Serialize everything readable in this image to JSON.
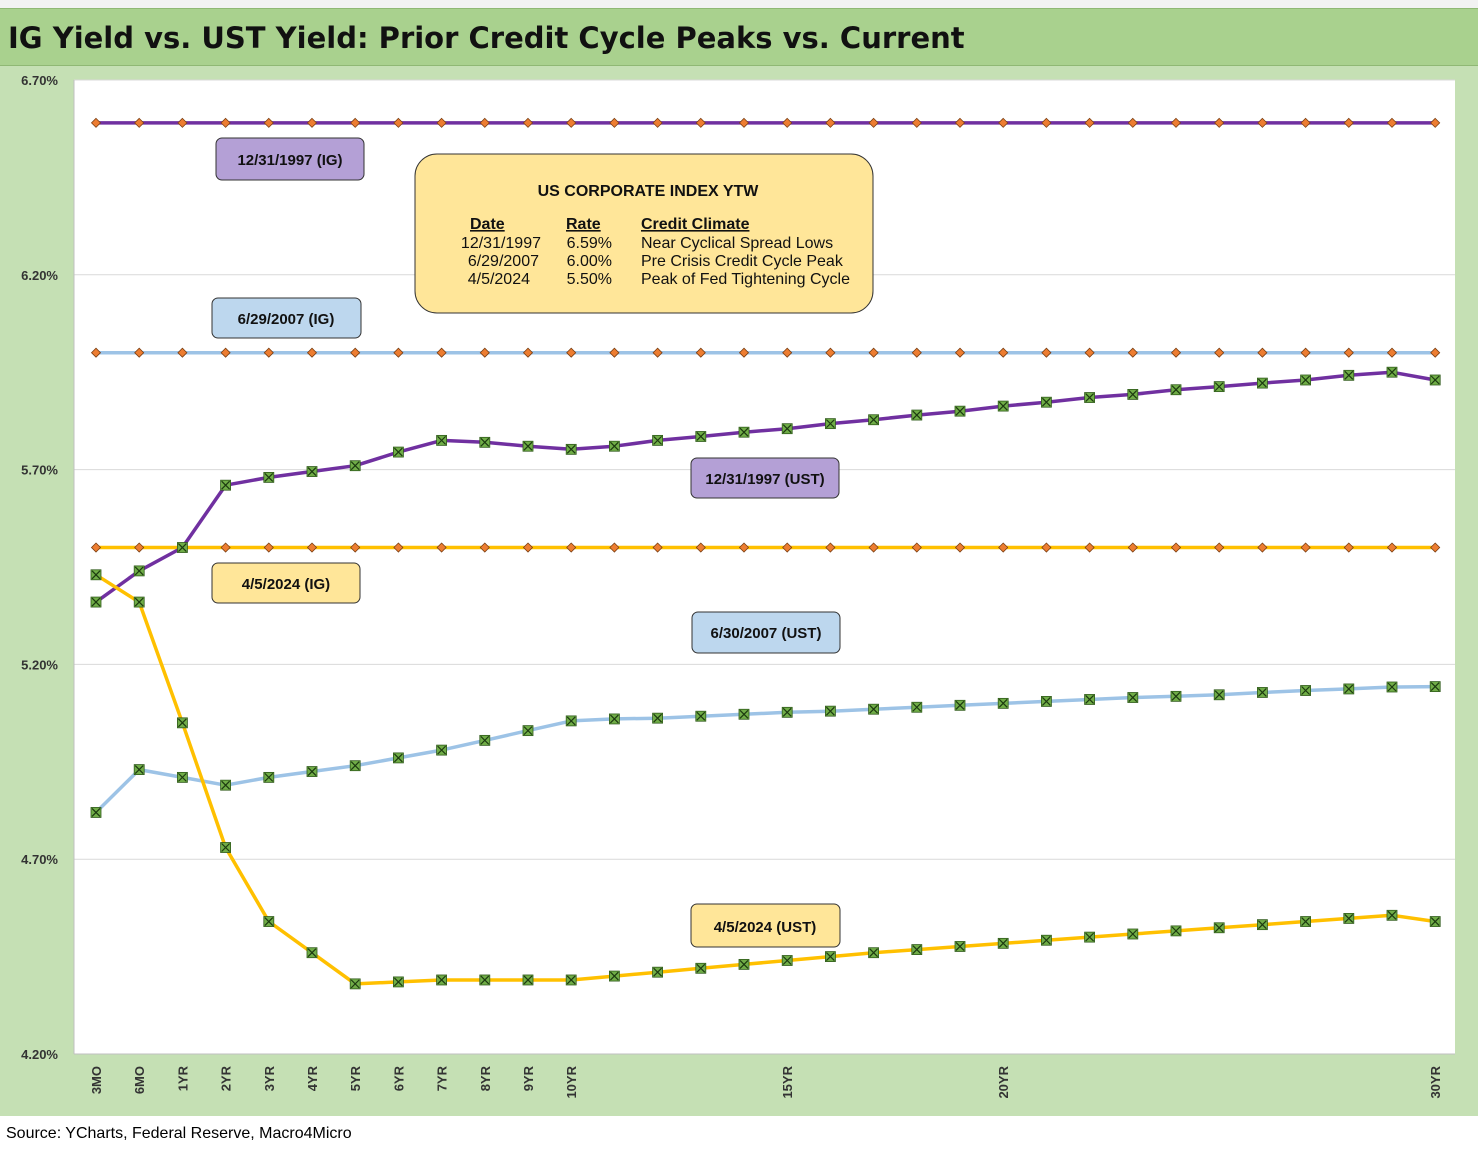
{
  "title": "IG Yield vs. UST Yield: Prior Credit Cycle Peaks vs. Current",
  "source": "Source: YCharts, Federal Reserve, Macro4Micro",
  "colors": {
    "series_1997": "#7030a0",
    "series_2007": "#9dc3e6",
    "series_2024": "#ffc000",
    "label_1997_fill": "#b4a0d6",
    "label_2007_fill": "#bdd7ee",
    "label_2024_fill": "#ffe699",
    "legend_fill": "#ffe699",
    "ig_marker": "#ed7d31",
    "ust_marker": "#70ad47",
    "frame": "#c5e0b4",
    "title_bar": "#a9d18e"
  },
  "chart_data": {
    "type": "line",
    "x_positions": [
      "3MO",
      "6MO",
      "1YR",
      "2YR",
      "3YR",
      "4YR",
      "5YR",
      "6YR",
      "7YR",
      "8YR",
      "9YR",
      "10YR",
      "11",
      "12",
      "13",
      "14",
      "15YR",
      "16",
      "17",
      "18",
      "19",
      "20YR",
      "21",
      "22",
      "23",
      "24",
      "25",
      "26",
      "27",
      "28",
      "29",
      "30YR"
    ],
    "x_tick_labels": [
      "3MO",
      "6MO",
      "1YR",
      "2YR",
      "3YR",
      "4YR",
      "5YR",
      "6YR",
      "7YR",
      "8YR",
      "9YR",
      "10YR",
      "",
      "",
      "",
      "",
      "15YR",
      "",
      "",
      "",
      "",
      "20YR",
      "",
      "",
      "",
      "",
      "",
      "",
      "",
      "",
      "",
      "30YR"
    ],
    "y_ticks": [
      "6.70%",
      "6.20%",
      "5.70%",
      "5.20%",
      "4.70%",
      "4.20%"
    ],
    "ylim": [
      4.2,
      6.7
    ],
    "grid": "horizontal",
    "series": [
      {
        "label": "12/31/1997 (IG)",
        "color_key": "series_1997",
        "marker": "ig",
        "values": [
          6.59,
          6.59,
          6.59,
          6.59,
          6.59,
          6.59,
          6.59,
          6.59,
          6.59,
          6.59,
          6.59,
          6.59,
          6.59,
          6.59,
          6.59,
          6.59,
          6.59,
          6.59,
          6.59,
          6.59,
          6.59,
          6.59,
          6.59,
          6.59,
          6.59,
          6.59,
          6.59,
          6.59,
          6.59,
          6.59,
          6.59,
          6.59
        ]
      },
      {
        "label": "6/29/2007 (IG)",
        "color_key": "series_2007",
        "marker": "ig",
        "values": [
          6.0,
          6.0,
          6.0,
          6.0,
          6.0,
          6.0,
          6.0,
          6.0,
          6.0,
          6.0,
          6.0,
          6.0,
          6.0,
          6.0,
          6.0,
          6.0,
          6.0,
          6.0,
          6.0,
          6.0,
          6.0,
          6.0,
          6.0,
          6.0,
          6.0,
          6.0,
          6.0,
          6.0,
          6.0,
          6.0,
          6.0,
          6.0
        ]
      },
      {
        "label": "4/5/2024 (IG)",
        "color_key": "series_2024",
        "marker": "ig",
        "values": [
          5.5,
          5.5,
          5.5,
          5.5,
          5.5,
          5.5,
          5.5,
          5.5,
          5.5,
          5.5,
          5.5,
          5.5,
          5.5,
          5.5,
          5.5,
          5.5,
          5.5,
          5.5,
          5.5,
          5.5,
          5.5,
          5.5,
          5.5,
          5.5,
          5.5,
          5.5,
          5.5,
          5.5,
          5.5,
          5.5,
          5.5,
          5.5
        ]
      },
      {
        "label": "12/31/1997 (UST)",
        "color_key": "series_1997",
        "marker": "ust",
        "values": [
          5.36,
          5.44,
          5.5,
          5.66,
          5.68,
          5.695,
          5.71,
          5.745,
          5.775,
          5.77,
          5.76,
          5.752,
          5.76,
          5.775,
          5.785,
          5.796,
          5.805,
          5.818,
          5.828,
          5.84,
          5.85,
          5.863,
          5.873,
          5.885,
          5.893,
          5.905,
          5.913,
          5.922,
          5.93,
          5.942,
          5.95,
          5.93
        ]
      },
      {
        "label": "6/30/2007 (UST)",
        "color_key": "series_2007",
        "marker": "ust",
        "values": [
          4.82,
          4.93,
          4.91,
          4.89,
          4.91,
          4.925,
          4.94,
          4.96,
          4.98,
          5.005,
          5.03,
          5.055,
          5.06,
          5.062,
          5.067,
          5.072,
          5.077,
          5.08,
          5.085,
          5.09,
          5.095,
          5.1,
          5.105,
          5.11,
          5.115,
          5.118,
          5.122,
          5.128,
          5.133,
          5.137,
          5.142,
          5.143
        ]
      },
      {
        "label": "4/5/2024 (UST)",
        "color_key": "series_2024",
        "marker": "ust",
        "values": [
          5.43,
          5.36,
          5.05,
          4.73,
          4.54,
          4.46,
          4.38,
          4.385,
          4.39,
          4.39,
          4.39,
          4.39,
          4.4,
          4.41,
          4.42,
          4.43,
          4.44,
          4.45,
          4.46,
          4.468,
          4.476,
          4.484,
          4.492,
          4.5,
          4.508,
          4.516,
          4.524,
          4.532,
          4.54,
          4.548,
          4.556,
          4.54
        ]
      }
    ],
    "legend_box": {
      "title": "US CORPORATE INDEX YTW",
      "headers": [
        "Date",
        "Rate",
        "Credit Climate"
      ],
      "rows": [
        [
          "12/31/1997",
          "6.59%",
          "Near Cyclical Spread Lows"
        ],
        [
          "6/29/2007",
          "6.00%",
          "Pre Crisis Credit Cycle Peak"
        ],
        [
          "4/5/2024",
          "5.50%",
          "Peak of Fed Tightening Cycle"
        ]
      ]
    }
  }
}
